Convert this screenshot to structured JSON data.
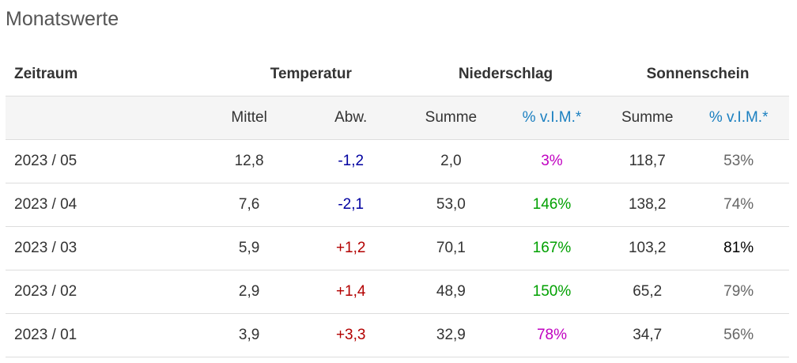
{
  "title": "Monatswerte",
  "headers": {
    "zeitraum": "Zeitraum",
    "temperatur": "Temperatur",
    "niederschlag": "Niederschlag",
    "sonnenschein": "Sonnenschein"
  },
  "subheaders": {
    "mittel": "Mittel",
    "abw": "Abw.",
    "summe_niederschlag": "Summe",
    "vim_niederschlag": "% v.I.M.*",
    "summe_sonnenschein": "Summe",
    "vim_sonnenschein": "% v.I.M.*"
  },
  "colors": {
    "negative_deviation": "#0000a0",
    "positive_deviation": "#b30000",
    "low_precipitation": "#c000c0",
    "high_precipitation": "#00a000",
    "link": "#1a7fc0"
  },
  "rows": [
    {
      "zeitraum": "2023 / 05",
      "mittel": "12,8",
      "abw": "-1,2",
      "summe_n": "2,0",
      "vim_n": "3%",
      "summe_s": "118,7",
      "vim_s": "53%"
    },
    {
      "zeitraum": "2023 / 04",
      "mittel": "7,6",
      "abw": "-2,1",
      "summe_n": "53,0",
      "vim_n": "146%",
      "summe_s": "138,2",
      "vim_s": "74%"
    },
    {
      "zeitraum": "2023 / 03",
      "mittel": "5,9",
      "abw": "+1,2",
      "summe_n": "70,1",
      "vim_n": "167%",
      "summe_s": "103,2",
      "vim_s": "81%"
    },
    {
      "zeitraum": "2023 / 02",
      "mittel": "2,9",
      "abw": "+1,4",
      "summe_n": "48,9",
      "vim_n": "150%",
      "summe_s": "65,2",
      "vim_s": "79%"
    },
    {
      "zeitraum": "2023 / 01",
      "mittel": "3,9",
      "abw": "+3,3",
      "summe_n": "32,9",
      "vim_n": "78%",
      "summe_s": "34,7",
      "vim_s": "56%"
    }
  ]
}
